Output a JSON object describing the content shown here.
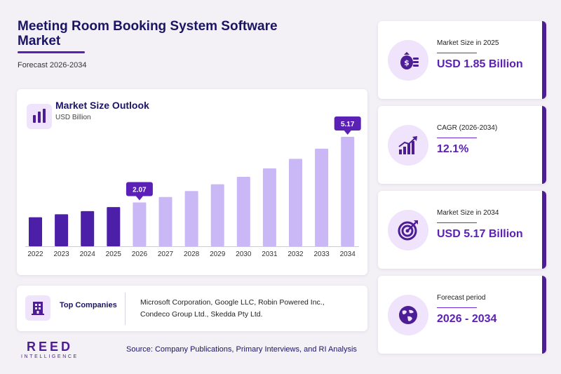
{
  "header": {
    "title": "Meeting Room Booking System Software Market",
    "subtitle": "Forecast 2026-2034"
  },
  "chart_data": {
    "type": "bar",
    "title": "Market Size Outlook",
    "ylabel": "USD Billion",
    "categories": [
      "2022",
      "2023",
      "2024",
      "2025",
      "2026",
      "2027",
      "2028",
      "2029",
      "2030",
      "2031",
      "2032",
      "2033",
      "2034"
    ],
    "values": [
      1.37,
      1.51,
      1.66,
      1.85,
      2.07,
      2.33,
      2.61,
      2.93,
      3.28,
      3.68,
      4.13,
      4.61,
      5.17
    ],
    "ylim": [
      0,
      5.17
    ],
    "callouts": [
      {
        "category": "2026",
        "label": "2.07"
      },
      {
        "category": "2034",
        "label": "5.17"
      }
    ],
    "colors": {
      "historical": "#4c1fa8",
      "forecast": "#c9b8f5",
      "callout": "#5b21b6"
    },
    "grid": false,
    "legend": "none"
  },
  "companies": {
    "label": "Top Companies",
    "text": "Microsoft Corporation, Google LLC, Robin Powered Inc., Condeco Group Ltd., Skedda Pty Ltd."
  },
  "kpis": [
    {
      "label": "Market Size in 2025",
      "value": "USD 1.85 Billion",
      "icon": "money-bag-icon"
    },
    {
      "label": "CAGR (2026-2034)",
      "value": "12.1%",
      "icon": "growth-chart-icon"
    },
    {
      "label": "Market Size in 2034",
      "value": "USD 5.17 Billion",
      "icon": "target-icon"
    },
    {
      "label": "Forecast period",
      "value": "2026 - 2034",
      "icon": "globe-icon"
    }
  ],
  "footer": {
    "logo_main": "REED",
    "logo_sub": "INTELLIGENCE",
    "source": "Source: Company Publications, Primary Interviews, and RI Analysis"
  }
}
